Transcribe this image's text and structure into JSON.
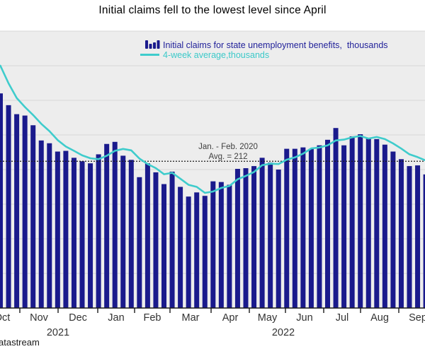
{
  "title": "Initial claims fell to the lowest level since April",
  "legend": {
    "series1_label": "Initial claims for state unemployment benefits,  thousands",
    "series2_label": "4-week average,thousands"
  },
  "annotation": {
    "line1": "Jan. - Feb. 2020",
    "line2": "Avg. = 212",
    "threshold_value": 212
  },
  "source_text": "atastream",
  "colors": {
    "bar": "#1a1a8c",
    "avg_line": "#3fcccc",
    "legend_series1_text": "#1f1f99",
    "legend_series2_text": "#3bc9c9",
    "plot_bg": "#ededed",
    "grid": "#d8d8d8",
    "axis": "#1a1a1a",
    "tick_text": "#333333",
    "annotation_text": "#404040",
    "threshold_line": "#1a1a1a",
    "title_text": "#000000",
    "source_text_color": "#1a1a1a"
  },
  "chart_data": {
    "type": "bar",
    "unit": "thousands",
    "title": "Initial claims fell to the lowest level since April",
    "xlabel": "",
    "ylabel": "thousands",
    "ylim": [
      0,
      400
    ],
    "grid_step": 50,
    "grid": true,
    "legend_position": "top-center",
    "x_month_labels": [
      "Oct",
      "Nov",
      "Dec",
      "Jan",
      "Feb",
      "Mar",
      "Apr",
      "May",
      "Jun",
      "Jul",
      "Aug",
      "Sep"
    ],
    "year_labels": [
      "2021",
      "2022"
    ],
    "frequency": "weekly",
    "series": [
      {
        "name": "Initial claims for state unemployment benefits, thousands",
        "style": "bar",
        "values": [
          310,
          293,
          280,
          278,
          264,
          242,
          238,
          226,
          227,
          217,
          212,
          209,
          222,
          237,
          240,
          220,
          214,
          189,
          209,
          196,
          179,
          197,
          175,
          161,
          167,
          162,
          183,
          182,
          178,
          201,
          202,
          205,
          217,
          210,
          200,
          230,
          230,
          232,
          230,
          235,
          243,
          260,
          235,
          248,
          251,
          245,
          244,
          236,
          226,
          215,
          205,
          206,
          193
        ]
      },
      {
        "name": "4-week average, thousands",
        "style": "line",
        "values": [
          350,
          324.5,
          303.3,
          290.3,
          278.8,
          266,
          255.5,
          242.5,
          233.3,
          227,
          220.5,
          216.3,
          215,
          220,
          227,
          229.8,
          227.8,
          215.8,
          208,
          202,
          193.3,
          195.3,
          186.8,
          178,
          175,
          166.3,
          168.3,
          173.5,
          176.3,
          186,
          190.8,
          196.5,
          206.3,
          208.5,
          208,
          214.3,
          217.5,
          223,
          230.5,
          231.8,
          235,
          242,
          243.3,
          246.5,
          248.5,
          244.8,
          247,
          244,
          237.8,
          230.3,
          222,
          218,
          213
        ]
      }
    ],
    "threshold": {
      "value": 212,
      "label_line1": "Jan. - Feb. 2020",
      "label_line2": "Avg. = 212"
    }
  }
}
